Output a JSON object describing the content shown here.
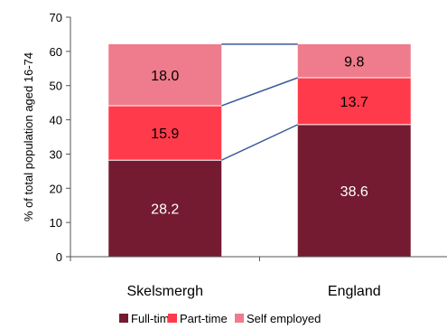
{
  "chart_data": {
    "type": "bar",
    "stacked": true,
    "categories": [
      "Skelsmergh",
      "England"
    ],
    "series": [
      {
        "name": "Full-time",
        "values": [
          28.2,
          38.6
        ],
        "color": "#741b31",
        "label_color": "#ffffff"
      },
      {
        "name": "Part-time",
        "values": [
          15.9,
          13.7
        ],
        "color": "#ff3b4b",
        "label_color": "#000000"
      },
      {
        "name": "Self employed",
        "values": [
          18.0,
          9.8
        ],
        "color": "#ee7c8c",
        "label_color": "#000000"
      }
    ],
    "ylabel": "% of total population aged  16-74",
    "ylim": [
      0,
      70
    ],
    "yticks": [
      0,
      10,
      20,
      30,
      40,
      50,
      60,
      70
    ],
    "connector_color": "#3a5a9a",
    "grid": false,
    "legend_position": "bottom"
  }
}
